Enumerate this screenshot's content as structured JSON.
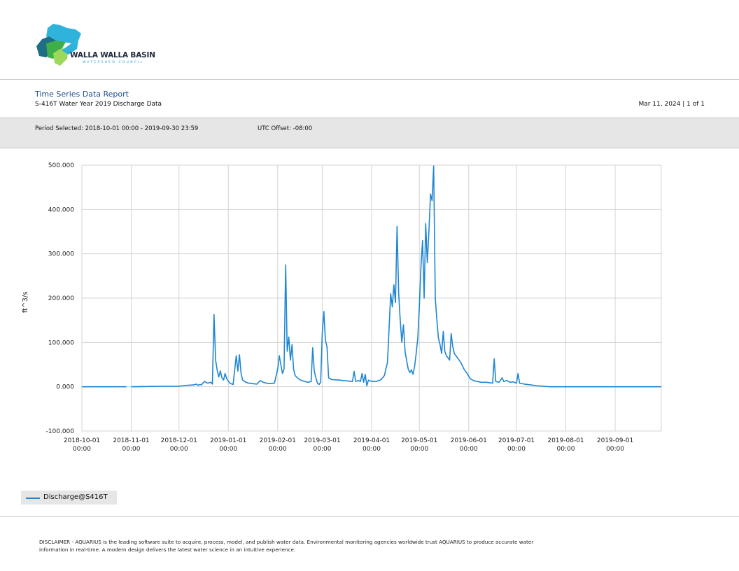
{
  "logo": {
    "name": "WALLA WALLA BASIN",
    "sub": "WATERSHED COUNCIL",
    "colors": [
      "#2fb3dc",
      "#1e6e86",
      "#3fae4a",
      "#9dd85a"
    ]
  },
  "header": {
    "title": "Time Series Data Report",
    "subtitle": "S-416T Water Year 2019 Discharge Data",
    "date_page": "Mar 11, 2024 | 1 of 1"
  },
  "info": {
    "period": "Period Selected: 2018-10-01 00:00 - 2019-09-30 23:59",
    "utc": "UTC Offset: -08:00"
  },
  "chart_data": {
    "type": "line",
    "ylabel": "ft^3/s",
    "ylim": [
      -100,
      500
    ],
    "yticks": [
      -100,
      0,
      100,
      200,
      300,
      400,
      500
    ],
    "ytick_labels": [
      "-100.000",
      "0.000",
      "100.000",
      "200.000",
      "300.000",
      "400.000",
      "500.000"
    ],
    "xlim": [
      "2018-10-01",
      "2019-09-30"
    ],
    "xticks": [
      "2018-10-01",
      "2018-11-01",
      "2018-12-01",
      "2019-01-01",
      "2019-02-01",
      "2019-03-01",
      "2019-04-01",
      "2019-05-01",
      "2019-06-01",
      "2019-07-01",
      "2019-08-01",
      "2019-09-01"
    ],
    "xtick_dates": [
      "2018-10-01",
      "2018-11-01",
      "2018-12-01",
      "2019-01-01",
      "2019-02-01",
      "2019-03-01",
      "2019-04-01",
      "2019-05-01",
      "2019-06-01",
      "2019-07-01",
      "2019-08-01",
      "2019-09-01"
    ],
    "xtick_times": [
      "00:00",
      "00:00",
      "00:00",
      "00:00",
      "00:00",
      "00:00",
      "00:00",
      "00:00",
      "00:00",
      "00:00",
      "00:00",
      "00:00"
    ],
    "grid": true,
    "legend_position": "bottom-left",
    "color": "#1f86d2",
    "series": [
      {
        "name": "Discharge@S416T",
        "segments": [
          [
            [
              "2018-10-01",
              0
            ],
            [
              "2018-10-29",
              0
            ]
          ],
          [
            [
              "2018-11-01",
              0
            ],
            [
              "2018-11-08",
              0.5
            ],
            [
              "2018-11-20",
              1
            ],
            [
              "2018-12-01",
              1
            ],
            [
              "2018-12-05",
              3
            ],
            [
              "2018-12-10",
              4
            ],
            [
              "2018-12-12",
              6
            ],
            [
              "2018-12-13",
              3
            ],
            [
              "2018-12-14",
              5
            ],
            [
              "2018-12-15",
              4
            ],
            [
              "2018-12-17",
              12
            ],
            [
              "2018-12-19",
              8
            ],
            [
              "2018-12-21",
              10
            ],
            [
              "2018-12-22",
              6
            ],
            [
              "2018-12-23",
              163
            ],
            [
              "2018-12-24",
              60
            ],
            [
              "2018-12-25",
              37
            ],
            [
              "2018-12-26",
              22
            ],
            [
              "2018-12-27",
              36
            ],
            [
              "2018-12-28",
              20
            ],
            [
              "2018-12-29",
              15
            ],
            [
              "2018-12-30",
              30
            ],
            [
              "2018-12-31",
              18
            ],
            [
              "2019-01-02",
              8
            ],
            [
              "2019-01-04",
              5
            ],
            [
              "2019-01-06",
              70
            ],
            [
              "2019-01-07",
              35
            ],
            [
              "2019-01-08",
              72
            ],
            [
              "2019-01-09",
              30
            ],
            [
              "2019-01-10",
              15
            ],
            [
              "2019-01-12",
              10
            ],
            [
              "2019-01-14",
              8
            ],
            [
              "2019-01-16",
              7
            ],
            [
              "2019-01-19",
              6
            ],
            [
              "2019-01-21",
              14
            ],
            [
              "2019-01-23",
              10
            ],
            [
              "2019-01-25",
              8
            ],
            [
              "2019-01-27",
              7
            ],
            [
              "2019-01-30",
              8
            ],
            [
              "2019-02-01",
              40
            ],
            [
              "2019-02-02",
              70
            ],
            [
              "2019-02-03",
              50
            ],
            [
              "2019-02-04",
              30
            ],
            [
              "2019-02-05",
              40
            ],
            [
              "2019-02-06",
              275
            ],
            [
              "2019-02-07",
              80
            ],
            [
              "2019-02-08",
              112
            ],
            [
              "2019-02-09",
              60
            ],
            [
              "2019-02-10",
              95
            ],
            [
              "2019-02-11",
              40
            ],
            [
              "2019-02-12",
              25
            ],
            [
              "2019-02-14",
              18
            ],
            [
              "2019-02-16",
              14
            ],
            [
              "2019-02-18",
              12
            ],
            [
              "2019-02-20",
              10
            ],
            [
              "2019-02-22",
              12
            ],
            [
              "2019-02-23",
              88
            ],
            [
              "2019-02-24",
              35
            ],
            [
              "2019-02-25",
              20
            ],
            [
              "2019-02-26",
              8
            ],
            [
              "2019-02-27",
              5
            ],
            [
              "2019-02-28",
              10
            ],
            [
              "2019-03-01",
              120
            ],
            [
              "2019-03-02",
              170
            ],
            [
              "2019-03-03",
              105
            ],
            [
              "2019-03-04",
              90
            ],
            [
              "2019-03-05",
              20
            ],
            [
              "2019-03-07",
              16
            ],
            [
              "2019-03-12",
              15
            ],
            [
              "2019-03-14",
              14
            ],
            [
              "2019-03-17",
              13
            ],
            [
              "2019-03-20",
              12
            ],
            [
              "2019-03-21",
              35
            ],
            [
              "2019-03-22",
              12
            ],
            [
              "2019-03-24",
              14
            ],
            [
              "2019-03-25",
              12
            ],
            [
              "2019-03-26",
              30
            ],
            [
              "2019-03-27",
              10
            ],
            [
              "2019-03-28",
              28
            ],
            [
              "2019-03-29",
              2
            ],
            [
              "2019-03-30",
              15
            ],
            [
              "2019-04-01",
              12
            ],
            [
              "2019-04-04",
              12
            ],
            [
              "2019-04-07",
              16
            ],
            [
              "2019-04-09",
              25
            ],
            [
              "2019-04-11",
              55
            ],
            [
              "2019-04-13",
              210
            ],
            [
              "2019-04-14",
              180
            ],
            [
              "2019-04-15",
              230
            ],
            [
              "2019-04-16",
              190
            ],
            [
              "2019-04-17",
              362
            ],
            [
              "2019-04-18",
              210
            ],
            [
              "2019-04-19",
              150
            ],
            [
              "2019-04-20",
              100
            ],
            [
              "2019-04-21",
              140
            ],
            [
              "2019-04-22",
              80
            ],
            [
              "2019-04-23",
              60
            ],
            [
              "2019-04-24",
              40
            ],
            [
              "2019-04-25",
              32
            ],
            [
              "2019-04-26",
              38
            ],
            [
              "2019-04-27",
              28
            ],
            [
              "2019-04-28",
              45
            ],
            [
              "2019-04-29",
              75
            ],
            [
              "2019-04-30",
              110
            ],
            [
              "2019-05-01",
              180
            ],
            [
              "2019-05-02",
              270
            ],
            [
              "2019-05-03",
              330
            ],
            [
              "2019-05-04",
              200
            ],
            [
              "2019-05-05",
              368
            ],
            [
              "2019-05-06",
              280
            ],
            [
              "2019-05-07",
              350
            ],
            [
              "2019-05-08",
              435
            ],
            [
              "2019-05-09",
              420
            ],
            [
              "2019-05-10",
              498
            ],
            [
              "2019-05-11",
              200
            ],
            [
              "2019-05-12",
              150
            ],
            [
              "2019-05-13",
              110
            ],
            [
              "2019-05-14",
              95
            ],
            [
              "2019-05-15",
              75
            ],
            [
              "2019-05-16",
              125
            ],
            [
              "2019-05-17",
              80
            ],
            [
              "2019-05-18",
              70
            ],
            [
              "2019-05-20",
              60
            ],
            [
              "2019-05-21",
              120
            ],
            [
              "2019-05-22",
              90
            ],
            [
              "2019-05-23",
              75
            ],
            [
              "2019-05-25",
              65
            ],
            [
              "2019-05-27",
              55
            ],
            [
              "2019-05-29",
              40
            ],
            [
              "2019-05-31",
              30
            ],
            [
              "2019-06-02",
              18
            ],
            [
              "2019-06-04",
              14
            ],
            [
              "2019-06-06",
              12
            ],
            [
              "2019-06-09",
              10
            ],
            [
              "2019-06-12",
              10
            ],
            [
              "2019-06-16",
              8
            ],
            [
              "2019-06-17",
              63
            ],
            [
              "2019-06-18",
              12
            ],
            [
              "2019-06-20",
              10
            ],
            [
              "2019-06-22",
              20
            ],
            [
              "2019-06-23",
              12
            ],
            [
              "2019-06-25",
              14
            ],
            [
              "2019-06-27",
              10
            ],
            [
              "2019-06-29",
              11
            ],
            [
              "2019-07-01",
              8
            ],
            [
              "2019-07-02",
              30
            ],
            [
              "2019-07-03",
              8
            ],
            [
              "2019-07-06",
              6
            ],
            [
              "2019-07-10",
              4
            ],
            [
              "2019-07-14",
              2
            ],
            [
              "2019-07-18",
              1
            ],
            [
              "2019-07-22",
              0
            ],
            [
              "2019-09-30",
              0
            ]
          ]
        ]
      }
    ]
  },
  "disclaimer": {
    "line1": "DISCLAIMER - AQUARIUS is the leading software suite to acquire, process, model, and publish water data. Environmental monitoring agencies worldwide trust AQUARIUS to produce accurate water",
    "line2": "information in real-time. A modern design delivers the latest water science in an intuitive experience."
  }
}
